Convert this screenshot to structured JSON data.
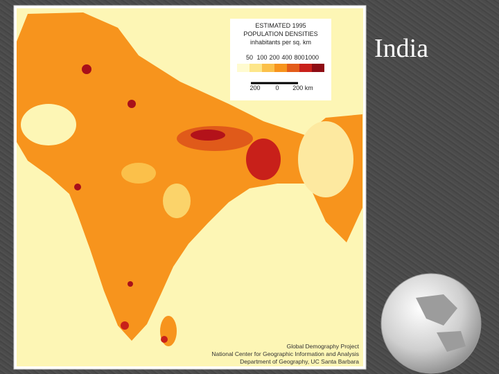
{
  "slide": {
    "title": "India"
  },
  "legend": {
    "title_lines": [
      "ESTIMATED 1995",
      "POPULATION DENSITIES"
    ],
    "subtitle": "inhabitants per sq. km",
    "ticks": [
      50,
      100,
      200,
      400,
      800,
      1000
    ],
    "scale_labels": [
      "200",
      "0",
      "200 km"
    ]
  },
  "credits": [
    "Global Demography Project",
    "National Center for Geographic Information and Analysis",
    "Department of Geography, UC Santa Barbara"
  ]
}
